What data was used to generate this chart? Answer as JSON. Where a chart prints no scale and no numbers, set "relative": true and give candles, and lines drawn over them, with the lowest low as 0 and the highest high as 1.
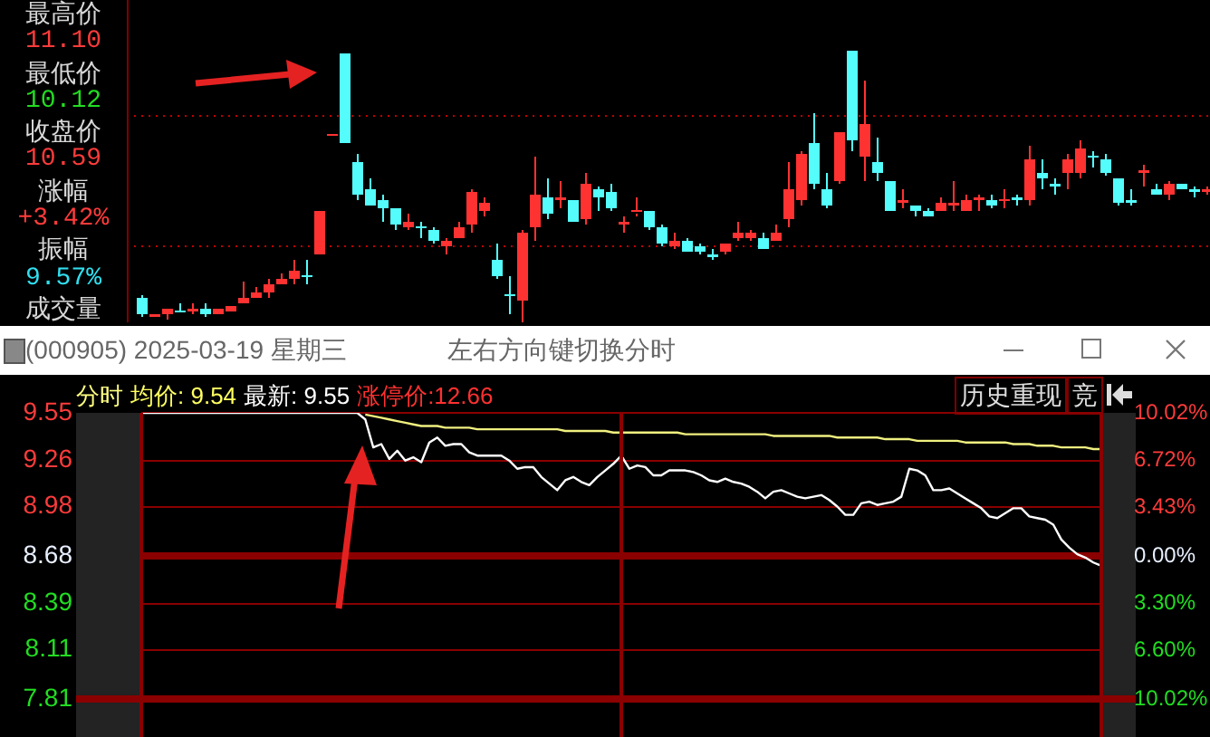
{
  "chart_data": [
    {
      "type": "candlestick",
      "relative": true,
      "tick_labels": false,
      "categories": [
        null,
        null,
        null,
        null,
        null,
        null,
        null,
        null,
        null,
        null,
        null,
        null,
        null,
        null,
        null,
        null,
        null,
        null,
        null,
        null,
        null,
        null,
        null,
        null,
        null,
        null,
        null,
        null,
        null,
        null,
        null,
        null,
        null,
        null,
        null,
        null,
        null,
        null,
        null,
        null,
        null,
        null,
        null,
        null,
        null,
        null,
        null,
        null,
        null,
        null,
        null,
        null,
        null,
        null,
        null,
        null,
        null,
        null,
        null,
        null,
        null,
        null,
        null,
        null,
        null,
        null,
        null,
        null,
        null,
        null,
        null,
        null,
        null,
        null,
        null,
        null,
        null,
        null,
        null,
        null,
        null,
        null,
        null,
        null,
        null
      ],
      "ohlc": [
        [
          0.09,
          0.1,
          0.02,
          0.03
        ],
        [
          0.02,
          0.03,
          0.02,
          0.03
        ],
        [
          0.03,
          0.05,
          0.01,
          0.05
        ],
        [
          0.04,
          0.07,
          0.04,
          0.04
        ],
        [
          0.04,
          0.07,
          0.03,
          0.05
        ],
        [
          0.05,
          0.07,
          0.02,
          0.03
        ],
        [
          0.03,
          0.05,
          0.03,
          0.05
        ],
        [
          0.04,
          0.06,
          0.04,
          0.06
        ],
        [
          0.07,
          0.15,
          0.07,
          0.09
        ],
        [
          0.09,
          0.13,
          0.09,
          0.11
        ],
        [
          0.11,
          0.16,
          0.09,
          0.14
        ],
        [
          0.14,
          0.18,
          0.14,
          0.16
        ],
        [
          0.16,
          0.23,
          0.14,
          0.19
        ],
        [
          0.17,
          0.23,
          0.14,
          0.17
        ],
        [
          0.25,
          0.41,
          0.25,
          0.41
        ],
        [
          0.69,
          0.69,
          0.69,
          0.69
        ],
        [
          0.99,
          0.99,
          0.66,
          0.66
        ],
        [
          0.59,
          0.62,
          0.45,
          0.47
        ],
        [
          0.49,
          0.53,
          0.43,
          0.43
        ],
        [
          0.45,
          0.47,
          0.37,
          0.42
        ],
        [
          0.42,
          0.42,
          0.34,
          0.36
        ],
        [
          0.35,
          0.4,
          0.34,
          0.37
        ],
        [
          0.35,
          0.37,
          0.31,
          0.35
        ],
        [
          0.34,
          0.35,
          0.29,
          0.3
        ],
        [
          0.28,
          0.31,
          0.25,
          0.3
        ],
        [
          0.31,
          0.37,
          0.31,
          0.35
        ],
        [
          0.36,
          0.49,
          0.33,
          0.48
        ],
        [
          0.41,
          0.46,
          0.39,
          0.44
        ],
        [
          0.23,
          0.29,
          0.16,
          0.17
        ],
        [
          0.1,
          0.17,
          0.03,
          0.1
        ],
        [
          0.08,
          0.34,
          0,
          0.33
        ],
        [
          0.35,
          0.61,
          0.3,
          0.47
        ],
        [
          0.46,
          0.53,
          0.38,
          0.4
        ],
        [
          0.45,
          0.52,
          0.42,
          0.46
        ],
        [
          0.45,
          0.45,
          0.37,
          0.37
        ],
        [
          0.38,
          0.55,
          0.36,
          0.51
        ],
        [
          0.49,
          0.5,
          0.41,
          0.46
        ],
        [
          0.48,
          0.51,
          0.41,
          0.42
        ],
        [
          0.36,
          0.39,
          0.33,
          0.37
        ],
        [
          0.4,
          0.46,
          0.39,
          0.41
        ],
        [
          0.41,
          0.41,
          0.34,
          0.35
        ],
        [
          0.35,
          0.36,
          0.28,
          0.29
        ],
        [
          0.28,
          0.33,
          0.27,
          0.3
        ],
        [
          0.3,
          0.31,
          0.26,
          0.26
        ],
        [
          0.28,
          0.29,
          0.25,
          0.26
        ],
        [
          0.25,
          0.27,
          0.23,
          0.24
        ],
        [
          0.26,
          0.29,
          0.25,
          0.29
        ],
        [
          0.31,
          0.37,
          0.3,
          0.33
        ],
        [
          0.31,
          0.34,
          0.3,
          0.33
        ],
        [
          0.31,
          0.33,
          0.27,
          0.27
        ],
        [
          0.3,
          0.36,
          0.3,
          0.33
        ],
        [
          0.38,
          0.59,
          0.35,
          0.49
        ],
        [
          0.45,
          0.63,
          0.43,
          0.62
        ],
        [
          0.66,
          0.77,
          0.49,
          0.51
        ],
        [
          0.49,
          0.55,
          0.42,
          0.43
        ],
        [
          0.52,
          0.7,
          0.51,
          0.7
        ],
        [
          1,
          1,
          0.63,
          0.67
        ],
        [
          0.61,
          0.89,
          0.52,
          0.73
        ],
        [
          0.59,
          0.68,
          0.52,
          0.55
        ],
        [
          0.52,
          0.52,
          0.41,
          0.41
        ],
        [
          0.44,
          0.49,
          0.42,
          0.45
        ],
        [
          0.43,
          0.43,
          0.39,
          0.41
        ],
        [
          0.41,
          0.42,
          0.39,
          0.39
        ],
        [
          0.41,
          0.46,
          0.41,
          0.44
        ],
        [
          0.43,
          0.52,
          0.41,
          0.44
        ],
        [
          0.41,
          0.47,
          0.41,
          0.45
        ],
        [
          0.45,
          0.47,
          0.41,
          0.46
        ],
        [
          0.45,
          0.47,
          0.42,
          0.43
        ],
        [
          0.45,
          0.49,
          0.42,
          0.45
        ],
        [
          0.46,
          0.47,
          0.43,
          0.45
        ],
        [
          0.45,
          0.65,
          0.43,
          0.6
        ],
        [
          0.55,
          0.6,
          0.49,
          0.53
        ],
        [
          0.51,
          0.53,
          0.47,
          0.5
        ],
        [
          0.55,
          0.62,
          0.49,
          0.6
        ],
        [
          0.55,
          0.67,
          0.53,
          0.64
        ],
        [
          0.61,
          0.63,
          0.57,
          0.61
        ],
        [
          0.6,
          0.62,
          0.54,
          0.55
        ],
        [
          0.53,
          0.53,
          0.43,
          0.44
        ],
        [
          0.45,
          0.49,
          0.43,
          0.44
        ],
        [
          0.55,
          0.58,
          0.5,
          0.56
        ],
        [
          0.49,
          0.51,
          0.47,
          0.47
        ],
        [
          0.47,
          0.52,
          0.45,
          0.51
        ],
        [
          0.51,
          0.51,
          0.49,
          0.49
        ],
        [
          0.49,
          0.5,
          0.46,
          0.48
        ],
        [
          0.48,
          0.5,
          0.47,
          0.49
        ]
      ],
      "colors": [
        "#54fcfc",
        "#ff3232",
        "#ff3232",
        "#54fcfc",
        "#ff3232",
        "#54fcfc",
        "#ff3232",
        "#ff3232",
        "#ff3232",
        "#ff3232",
        "#ff3232",
        "#ff3232",
        "#ff3232",
        "#54fcfc",
        "#ff3232",
        "#ff3232",
        "#54fcfc",
        "#54fcfc",
        "#54fcfc",
        "#54fcfc",
        "#54fcfc",
        "#ff3232",
        "#54fcfc",
        "#54fcfc",
        "#ff3232",
        "#ff3232",
        "#ff3232",
        "#ff3232",
        "#54fcfc",
        "#54fcfc",
        "#ff3232",
        "#ff3232",
        "#54fcfc",
        "#ff3232",
        "#54fcfc",
        "#ff3232",
        "#54fcfc",
        "#54fcfc",
        "#ff3232",
        "#ff3232",
        "#54fcfc",
        "#54fcfc",
        "#ff3232",
        "#54fcfc",
        "#54fcfc",
        "#54fcfc",
        "#ff3232",
        "#ff3232",
        "#ff3232",
        "#54fcfc",
        "#ff3232",
        "#ff3232",
        "#ff3232",
        "#54fcfc",
        "#54fcfc",
        "#ff3232",
        "#54fcfc",
        "#ff3232",
        "#54fcfc",
        "#54fcfc",
        "#ff3232",
        "#54fcfc",
        "#54fcfc",
        "#ff3232",
        "#ff3232",
        "#ff3232",
        "#ff3232",
        "#54fcfc",
        "#ff3232",
        "#54fcfc",
        "#ff3232",
        "#54fcfc",
        "#54fcfc",
        "#ff3232",
        "#ff3232",
        "#54fcfc",
        "#54fcfc",
        "#54fcfc",
        "#54fcfc",
        "#ff3232",
        "#54fcfc",
        "#ff3232",
        "#54fcfc",
        "#54fcfc",
        "#ff3232"
      ],
      "ref_lines": [
        {
          "axis": "y",
          "value": 0.76,
          "color": "#c00000",
          "line_style": "dotted"
        },
        {
          "axis": "y",
          "value": 0.28,
          "color": "#c00000",
          "line_style": "dotted"
        }
      ]
    },
    {
      "type": "other",
      "annotations": [
        "最高价",
        "11.10",
        "最低价",
        "10.12",
        "收盘价",
        "10.59",
        "涨幅",
        "+3.42%",
        "振幅",
        "9.57%",
        "成交量"
      ]
    },
    {
      "type": "line",
      "title": "(000905) 2025-03-19 星期三",
      "subtitle": "左右方向键切换分时",
      "annotations": [
        "分时",
        "均价: 9.54",
        "最新: 9.55",
        "涨停价:12.66",
        "历史重现",
        "竞"
      ],
      "categories": [
        null,
        null,
        null,
        null,
        null,
        null,
        null,
        null,
        null,
        null,
        null,
        null,
        null,
        null,
        null,
        null,
        null,
        null,
        null,
        null,
        null,
        null,
        null,
        null,
        null,
        null,
        null,
        null,
        null,
        null,
        null,
        null,
        null,
        null,
        null,
        null,
        null,
        null,
        null,
        null,
        null,
        null,
        null,
        null,
        null,
        null,
        null,
        null,
        null,
        null,
        null,
        null,
        null,
        null,
        null,
        null,
        null,
        null,
        null,
        null,
        null,
        null,
        null,
        null,
        null,
        null,
        null,
        null,
        null,
        null,
        null,
        null,
        null,
        null,
        null,
        null,
        null,
        null,
        null,
        null,
        null,
        null,
        null,
        null,
        null,
        null,
        null,
        null,
        null,
        null,
        null,
        null,
        null,
        null,
        null,
        null,
        null,
        null,
        null,
        null,
        null,
        null,
        null,
        null,
        null,
        null,
        null,
        null,
        null,
        null,
        null,
        null,
        null,
        null,
        null,
        null,
        null,
        null,
        null,
        null,
        null
      ],
      "ylim": [
        7.81,
        9.55
      ],
      "yticks": [
        7.81,
        8.11,
        8.39,
        8.68,
        8.98,
        9.26,
        9.55
      ],
      "y2lim": [
        -10.02,
        10.02
      ],
      "y2ticks": [
        {
          "value": -10.02,
          "label": "10.02%"
        },
        {
          "value": -6.6,
          "label": "6.60%"
        },
        {
          "value": -3.3,
          "label": "3.30%"
        },
        {
          "value": 0,
          "label": "0.00%"
        },
        {
          "value": 3.43,
          "label": "3.43%"
        },
        {
          "value": 6.72,
          "label": "6.72%"
        },
        {
          "value": 10.02,
          "label": "10.02%"
        }
      ],
      "grid": "y",
      "tick_labels": "y",
      "marker": "none",
      "ref_lines": [
        {
          "axis": "y",
          "value": 8.68,
          "color": "#8b0000"
        }
      ],
      "series": [
        {
          "color": "#ffffff",
          "values": [
            9.55,
            9.55,
            9.55,
            9.55,
            9.55,
            9.55,
            9.55,
            9.55,
            9.55,
            9.55,
            9.55,
            9.55,
            9.55,
            9.55,
            9.55,
            9.55,
            9.55,
            9.55,
            9.55,
            9.55,
            9.55,
            9.55,
            9.55,
            9.55,
            9.55,
            9.55,
            9.55,
            9.55,
            9.51,
            9.34,
            9.36,
            9.27,
            9.32,
            9.26,
            9.28,
            9.25,
            9.37,
            9.4,
            9.35,
            9.36,
            9.36,
            9.31,
            9.29,
            9.29,
            9.29,
            9.29,
            9.26,
            9.21,
            9.22,
            9.22,
            9.16,
            9.12,
            9.08,
            9.14,
            9.16,
            9.13,
            9.11,
            9.16,
            9.2,
            9.24,
            9.29,
            9.21,
            9.23,
            9.22,
            9.17,
            9.17,
            9.2,
            9.2,
            9.2,
            9.19,
            9.17,
            9.14,
            9.13,
            9.15,
            9.13,
            9.12,
            9.1,
            9.07,
            9.03,
            9.07,
            9.08,
            9.06,
            9.04,
            9.03,
            9.04,
            9.05,
            9.02,
            8.98,
            8.93,
            8.93,
            9.0,
            9.01,
            8.99,
            9.0,
            9.01,
            9.04,
            9.21,
            9.2,
            9.17,
            9.08,
            9.08,
            9.09,
            9.06,
            9.03,
            9.0,
            8.97,
            8.92,
            8.91,
            8.94,
            8.97,
            8.97,
            8.92,
            8.91,
            8.9,
            8.87,
            8.78,
            8.73,
            8.69,
            8.67,
            8.64,
            8.62
          ]
        },
        {
          "color": "#f0f080",
          "values": [
            null,
            null,
            null,
            null,
            null,
            null,
            null,
            null,
            null,
            null,
            null,
            null,
            null,
            null,
            null,
            null,
            null,
            null,
            null,
            null,
            null,
            null,
            null,
            null,
            null,
            null,
            null,
            null,
            9.54,
            9.53,
            9.52,
            9.51,
            9.5,
            9.49,
            9.48,
            9.47,
            9.47,
            9.47,
            9.46,
            9.46,
            9.46,
            9.46,
            9.45,
            9.45,
            9.45,
            9.45,
            9.45,
            9.45,
            9.45,
            9.45,
            9.45,
            9.45,
            9.45,
            9.44,
            9.44,
            9.44,
            9.44,
            9.44,
            9.44,
            9.43,
            9.43,
            9.43,
            9.43,
            9.43,
            9.43,
            9.43,
            9.43,
            9.43,
            9.42,
            9.42,
            9.42,
            9.42,
            9.42,
            9.42,
            9.42,
            9.42,
            9.42,
            9.42,
            9.42,
            9.41,
            9.41,
            9.41,
            9.41,
            9.41,
            9.41,
            9.41,
            9.41,
            9.4,
            9.4,
            9.4,
            9.4,
            9.4,
            9.4,
            9.39,
            9.39,
            9.39,
            9.39,
            9.38,
            9.38,
            9.38,
            9.38,
            9.38,
            9.38,
            9.37,
            9.37,
            9.37,
            9.37,
            9.37,
            9.37,
            9.36,
            9.36,
            9.36,
            9.35,
            9.35,
            9.35,
            9.34,
            9.34,
            9.34,
            9.34,
            9.33,
            9.33
          ]
        }
      ]
    }
  ]
}
